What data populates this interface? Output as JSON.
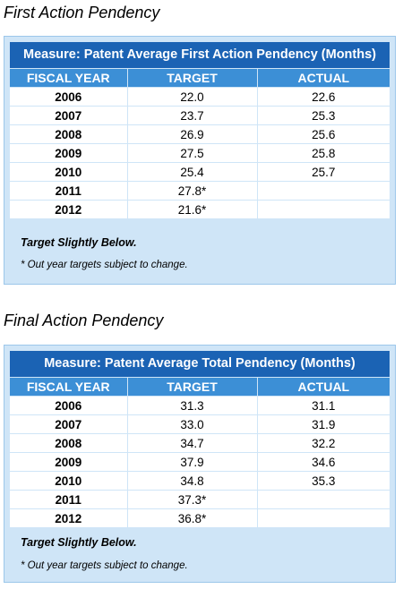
{
  "sections": [
    {
      "title": "First Action Pendency",
      "measure": "Measure:  Patent Average First Action Pendency (Months)",
      "headers": [
        "FISCAL YEAR",
        "TARGET",
        "ACTUAL"
      ],
      "rows": [
        {
          "year": "2006",
          "target": "22.0",
          "actual": "22.6"
        },
        {
          "year": "2007",
          "target": "23.7",
          "actual": "25.3"
        },
        {
          "year": "2008",
          "target": "26.9",
          "actual": "25.6"
        },
        {
          "year": "2009",
          "target": "27.5",
          "actual": "25.8"
        },
        {
          "year": "2010",
          "target": "25.4",
          "actual": "25.7"
        },
        {
          "year": "2011",
          "target": "27.8*",
          "actual": ""
        },
        {
          "year": "2012",
          "target": "21.6*",
          "actual": ""
        }
      ],
      "result_note": "Target Slightly Below.",
      "footnote": "* Out year targets subject to change."
    },
    {
      "title": "Final Action Pendency",
      "measure": "Measure:  Patent Average Total Pendency (Months)",
      "headers": [
        "FISCAL YEAR",
        "TARGET",
        "ACTUAL"
      ],
      "rows": [
        {
          "year": "2006",
          "target": "31.3",
          "actual": "31.1"
        },
        {
          "year": "2007",
          "target": "33.0",
          "actual": "31.9"
        },
        {
          "year": "2008",
          "target": "34.7",
          "actual": "32.2"
        },
        {
          "year": "2009",
          "target": "37.9",
          "actual": "34.6"
        },
        {
          "year": "2010",
          "target": "34.8",
          "actual": "35.3"
        },
        {
          "year": "2011",
          "target": "37.3*",
          "actual": ""
        },
        {
          "year": "2012",
          "target": "36.8*",
          "actual": ""
        }
      ],
      "result_note": "Target Slightly Below.",
      "footnote": "* Out year targets subject to change."
    }
  ]
}
